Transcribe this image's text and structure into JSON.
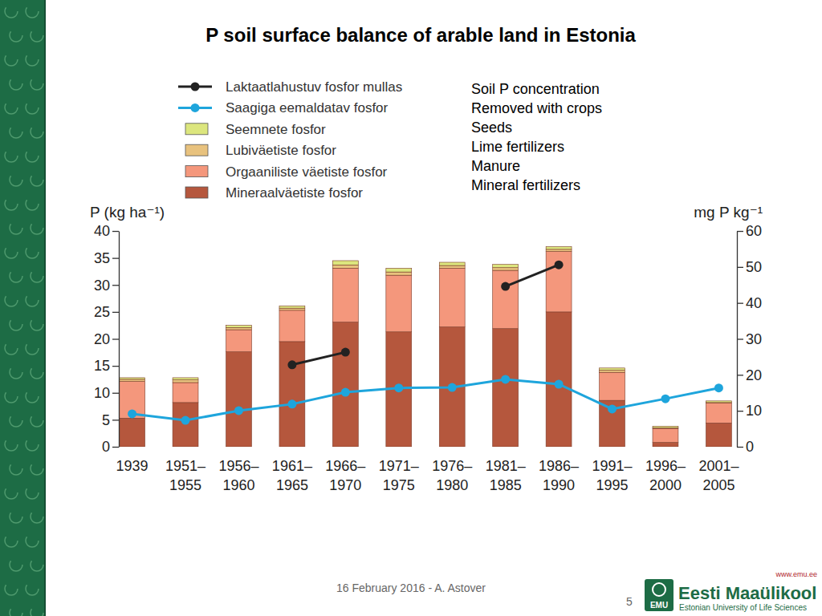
{
  "chart_data": {
    "type": "bar",
    "title": "P soil surface balance of arable land in Estonia",
    "y_label": "P (kg ha⁻¹)",
    "y2_label": "mg P kg⁻¹",
    "stacked": true,
    "grid": false,
    "legend": "top-left",
    "annotations": [
      "Soil P concentration",
      "Removed with crops",
      "Seeds",
      "Lime fertilizers",
      "Manure",
      "Mineral fertilizers"
    ],
    "categories": [
      "1939",
      "1951–1955",
      "1956–1960",
      "1961–1965",
      "1966–1970",
      "1971–1975",
      "1976–1980",
      "1981–1985",
      "1986–1990",
      "1991–1995",
      "1996–2000",
      "2001–2005"
    ],
    "ylim": [
      0,
      40
    ],
    "yticks": [
      0,
      5,
      10,
      15,
      20,
      25,
      30,
      35,
      40
    ],
    "y2lim": [
      0,
      60
    ],
    "y2ticks": [
      0,
      10,
      20,
      30,
      40,
      50,
      60
    ],
    "series": [
      {
        "name": "Mineraalväetiste fosfor",
        "type": "bar",
        "color": "#b5573d",
        "values": [
          5.3,
          8.2,
          17.6,
          19.5,
          23.1,
          21.3,
          22.2,
          21.9,
          25.0,
          8.6,
          0.8,
          4.4
        ]
      },
      {
        "name": "Orgaaniliste väetiste fosfor",
        "type": "bar",
        "color": "#f4977c",
        "values": [
          6.8,
          3.7,
          4.1,
          5.8,
          10.0,
          10.5,
          10.9,
          10.8,
          11.2,
          5.2,
          2.6,
          3.7
        ]
      },
      {
        "name": "Lubiväetiste fosfor",
        "type": "bar",
        "color": "#e8c27e",
        "values": [
          0.4,
          0.5,
          0.4,
          0.4,
          0.6,
          0.6,
          0.5,
          0.5,
          0.4,
          0.4,
          0.1,
          0.1
        ]
      },
      {
        "name": "Seemnete fosfor",
        "type": "bar",
        "color": "#dce67e",
        "values": [
          0.3,
          0.4,
          0.4,
          0.4,
          0.8,
          0.7,
          0.6,
          0.6,
          0.5,
          0.4,
          0.3,
          0.3
        ]
      },
      {
        "name": "Saagiga eemaldatav fosfor",
        "type": "line",
        "color": "#1ea5dc",
        "marker": "circle",
        "line_style": "solid",
        "values": [
          6.1,
          4.9,
          6.7,
          7.9,
          10.1,
          10.9,
          11.0,
          12.5,
          11.6,
          7.0,
          8.9,
          10.9
        ]
      },
      {
        "name": "Laktaatlahustuv fosfor mullas",
        "type": "line",
        "color": "#222222",
        "marker": "circle",
        "line_style": "solid",
        "axis": "y2",
        "values": [
          null,
          null,
          null,
          22.8,
          26.3,
          null,
          null,
          44.6,
          50.6,
          null,
          null,
          null
        ]
      }
    ]
  },
  "slide": {
    "footer": "16 February 2016 - A. Astover",
    "page_number": "5",
    "website": "www.emu.ee",
    "logo_mark": "EMU",
    "logo_name": "Eesti Maaülikool",
    "logo_subtitle": "Estonian University of Life Sciences"
  }
}
